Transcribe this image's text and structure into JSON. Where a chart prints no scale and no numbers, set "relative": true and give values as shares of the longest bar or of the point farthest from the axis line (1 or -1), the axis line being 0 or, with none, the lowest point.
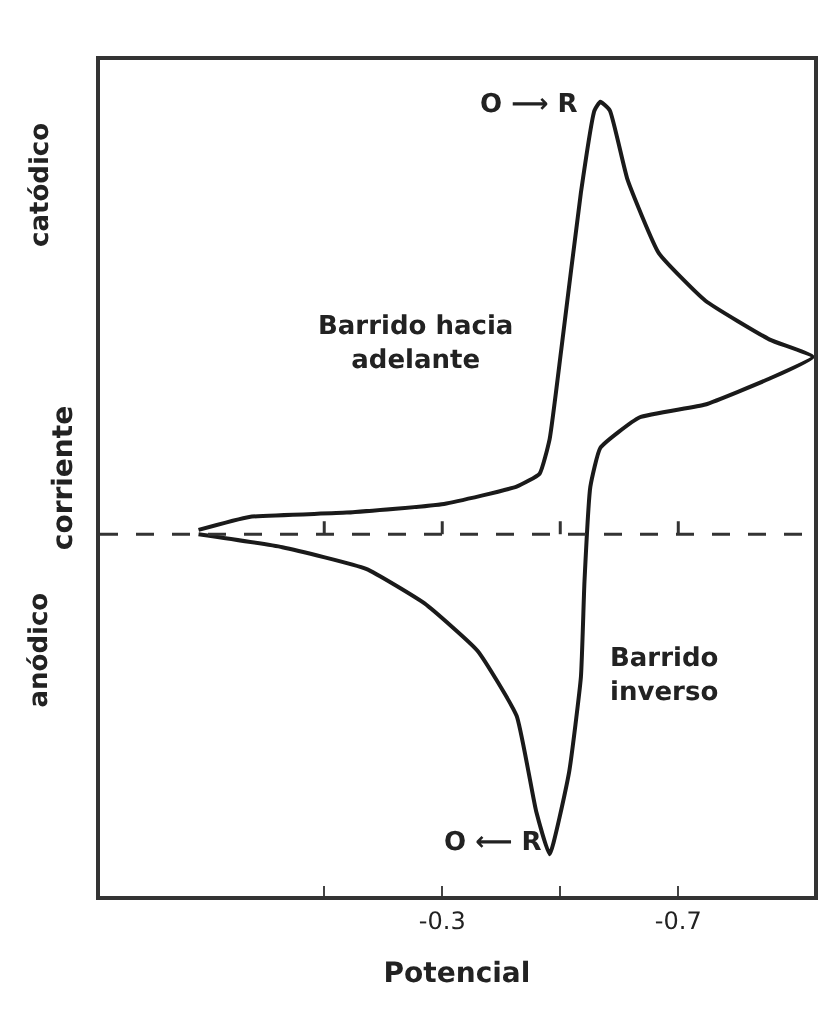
{
  "chart_data": {
    "type": "line",
    "relative": true,
    "xlabel": "Potencial",
    "ylabel": "corriente",
    "x": [
      0.113,
      0.027,
      -0.138,
      -0.303,
      -0.426,
      -0.465,
      -0.482,
      -0.502,
      -0.535,
      -0.558,
      -0.568,
      -0.584,
      -0.614,
      -0.667,
      -0.746,
      -0.855,
      -0.928,
      -0.855,
      -0.746,
      -0.634,
      -0.568,
      -0.551,
      -0.541,
      -0.535,
      -0.515,
      -0.482,
      -0.459,
      -0.426,
      -0.36,
      -0.27,
      -0.171,
      -0.029,
      0.113
    ],
    "series": [
      {
        "color": "#1a1a1a",
        "values": [
          0.01,
          0.04,
          0.05,
          0.07,
          0.11,
          0.14,
          0.22,
          0.43,
          0.79,
          0.98,
          1,
          0.98,
          0.82,
          0.65,
          0.54,
          0.45,
          0.41,
          0.36,
          0.3,
          0.27,
          0.2,
          0.11,
          -0.11,
          -0.33,
          -0.55,
          -0.74,
          -0.64,
          -0.42,
          -0.27,
          -0.16,
          -0.08,
          -0.03,
          0
        ]
      }
    ],
    "xlim": [
      0.28,
      -0.93
    ],
    "xticks": [
      {
        "value": -0.1,
        "label": null
      },
      -0.3,
      {
        "value": -0.5,
        "label": null
      },
      -0.7
    ],
    "ref_lines": [
      {
        "axis": "y",
        "value": 0,
        "label": null,
        "color": "#333333",
        "line_style": "dashed"
      }
    ],
    "annotations": [
      "catódico",
      "anódico",
      "Barrido hacia\nadelante",
      "Barrido\ninverso",
      "O ⟶ R",
      "O ⟵ R"
    ],
    "marker": "none",
    "line_style": "solid"
  }
}
